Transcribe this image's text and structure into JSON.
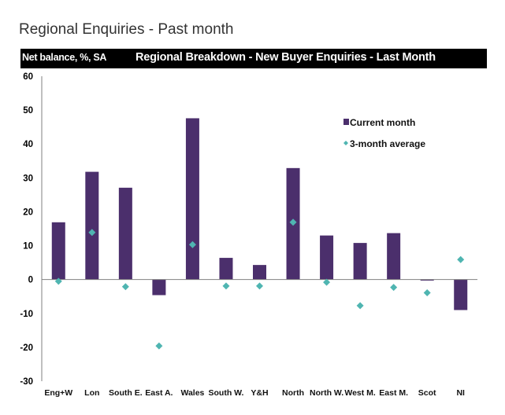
{
  "page": {
    "title": "Regional Enquiries - Past month"
  },
  "chart_data": {
    "type": "bar",
    "title": "Regional Breakdown - New Buyer Enquiries - Last Month",
    "unit_label": "Net balance, %, SA",
    "xlabel": "",
    "ylabel": "Net balance, %, SA",
    "ylim": [
      -30,
      60
    ],
    "yticks": [
      60,
      50,
      40,
      30,
      20,
      10,
      0,
      -10,
      -20,
      -30
    ],
    "grid": false,
    "legend_position": "top-right",
    "categories": [
      "Eng+W",
      "Lon",
      "South E.",
      "East A.",
      "Wales",
      "South W.",
      "Y&H",
      "North",
      "North W.",
      "West M.",
      "East M.",
      "Scot",
      "NI"
    ],
    "series": [
      {
        "name": "Current month",
        "type": "bar",
        "color": "#4b2f6c",
        "values": [
          16.9,
          31.8,
          27.1,
          -4.6,
          47.6,
          6.4,
          4.3,
          32.9,
          13.0,
          10.8,
          13.7,
          -0.3,
          -9.0
        ]
      },
      {
        "name": "3-month average",
        "type": "scatter",
        "marker": "diamond",
        "color": "#4fb5b1",
        "values": [
          -0.5,
          13.9,
          -2.1,
          -19.6,
          10.3,
          -1.9,
          -1.9,
          16.9,
          -0.8,
          -7.7,
          -2.3,
          -3.9,
          5.9
        ]
      }
    ]
  }
}
